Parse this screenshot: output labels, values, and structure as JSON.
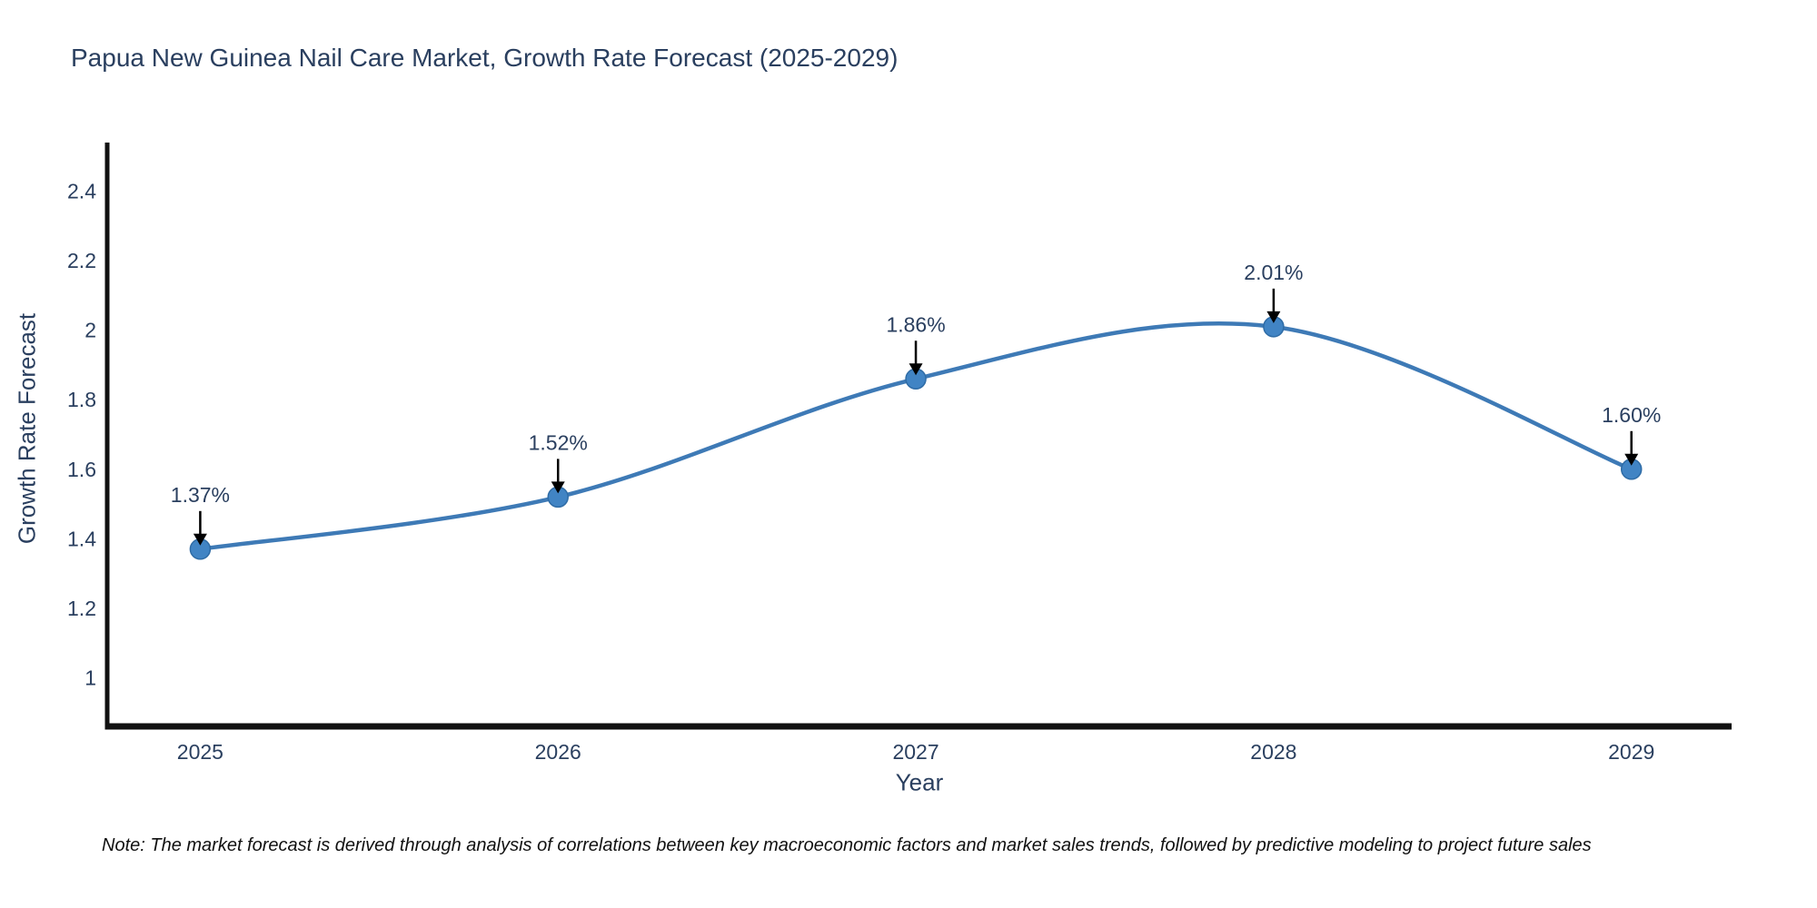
{
  "title": "Papua New Guinea Nail Care Market, Growth Rate Forecast (2025-2029)",
  "note": "Note: The market forecast is derived through analysis of correlations between key macroeconomic factors and market sales trends, followed by predictive modeling to project future sales",
  "chart_data": {
    "type": "line",
    "title": "Papua New Guinea Nail Care Market, Growth Rate Forecast (2025-2029)",
    "xlabel": "Year",
    "ylabel": "Growth Rate Forecast",
    "x": [
      2025,
      2026,
      2027,
      2028,
      2029
    ],
    "series": [
      {
        "name": "Growth Rate Forecast",
        "values": [
          1.37,
          1.52,
          1.86,
          2.01,
          1.6
        ]
      }
    ],
    "point_labels": [
      "1.37%",
      "1.52%",
      "1.86%",
      "2.01%",
      "1.60%"
    ],
    "line_shape": "spline",
    "grid": false,
    "legend_position": "none",
    "xlim": [
      2024.74,
      2029.28
    ],
    "ylim": [
      0.86,
      2.54
    ],
    "x_tick_values": [
      2025,
      2026,
      2027,
      2028,
      2029
    ],
    "x_tick_labels": [
      "2025",
      "2026",
      "2027",
      "2028",
      "2029"
    ],
    "y_tick_values": [
      1,
      1.2,
      1.4,
      1.6,
      1.8,
      2,
      2.2,
      2.4
    ],
    "y_tick_labels": [
      "1",
      "1.2",
      "1.4",
      "1.6",
      "1.8",
      "2",
      "2.2",
      "2.4"
    ],
    "colors": {
      "line": "#3e7ab6",
      "marker_fill": "#4184c4",
      "marker_stroke": "#2f6ca6",
      "axis": "#111111",
      "tick_text": "#2a3f5f",
      "annotation_text": "#2a3f5f",
      "annotation_arrow": "#000000",
      "title_text": "#2a3f5f",
      "note_text": "#111111",
      "background": "#ffffff"
    }
  }
}
